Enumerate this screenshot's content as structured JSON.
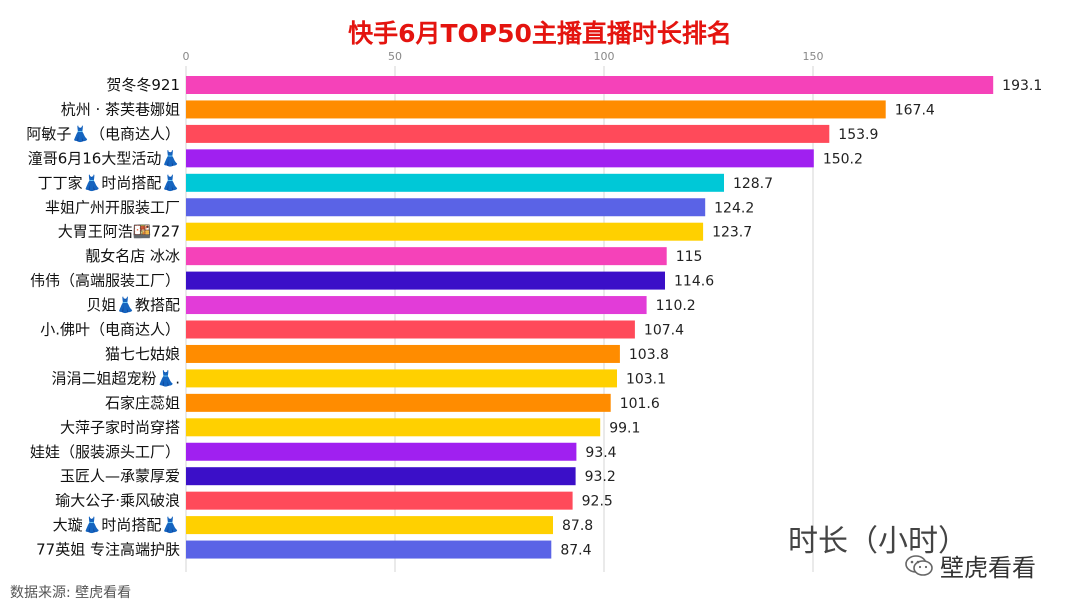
{
  "title": "快手6月TOP50主播直播时长排名",
  "source_note": "数据来源: 壁虎看看",
  "brand_label": "壁虎看看",
  "chart_data": {
    "type": "bar",
    "orientation": "horizontal",
    "title": "快手6月TOP50主播直播时长排名",
    "xlabel": "时长（小时）",
    "xlim": [
      0,
      195
    ],
    "xticks": [
      0,
      50,
      100,
      150
    ],
    "grid": true,
    "categories": [
      "贺冬冬921",
      "杭州 · 茶芙巷娜姐",
      "阿敏子👗（电商达人）",
      "潼哥6月16大型活动👗",
      "丁丁家👗时尚搭配👗",
      "芈姐广州开服装工厂",
      "大胃王阿浩🍱727",
      "靓女名店 冰冰",
      "伟伟（高端服装工厂）",
      "贝姐👗教搭配",
      "小.佛叶（电商达人）",
      "猫七七姑娘",
      "涓涓二姐超宠粉👗.",
      "石家庄蕊姐",
      "大萍子家时尚穿搭",
      "娃娃（服装源头工厂）",
      "玉匠人—承蒙厚爱",
      "瑜大公子·乘风破浪",
      "大璇👗时尚搭配👗",
      "77英姐 专注高端护肤"
    ],
    "values": [
      193.1,
      167.4,
      153.9,
      150.2,
      128.7,
      124.2,
      123.7,
      115,
      114.6,
      110.2,
      107.4,
      103.8,
      103.1,
      101.6,
      99.1,
      93.4,
      93.2,
      92.5,
      87.8,
      87.4
    ],
    "value_labels": [
      "193.1",
      "167.4",
      "153.9",
      "150.2",
      "128.7",
      "124.2",
      "123.7",
      "115",
      "114.6",
      "110.2",
      "107.4",
      "103.8",
      "103.1",
      "101.6",
      "99.1",
      "93.4",
      "93.2",
      "92.5",
      "87.8",
      "87.4"
    ],
    "colors": [
      "#f542b9",
      "#ff8c00",
      "#ff4a5a",
      "#a020f0",
      "#00c8d7",
      "#5a63e6",
      "#ffd000",
      "#f542b9",
      "#3b0fc8",
      "#e23cd8",
      "#ff4a5a",
      "#ff8c00",
      "#ffd000",
      "#ff8c00",
      "#ffd000",
      "#a020f0",
      "#3b0fc8",
      "#ff4a5a",
      "#ffd000",
      "#5a63e6"
    ]
  }
}
